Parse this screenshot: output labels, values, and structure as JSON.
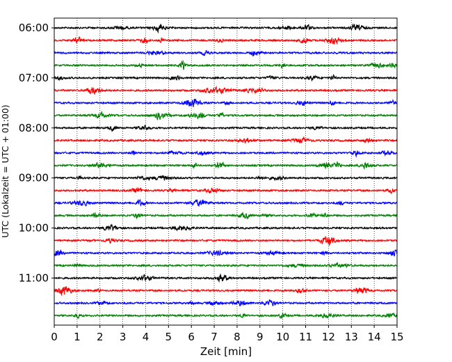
{
  "chart_data": {
    "type": "line",
    "title": "",
    "xlabel": "Zeit  [min]",
    "ylabel": "UTC (Lokalzeit = UTC + 01:00)",
    "xlim": [
      0,
      15
    ],
    "x_ticks": [
      0,
      1,
      2,
      3,
      4,
      5,
      6,
      7,
      8,
      9,
      10,
      11,
      12,
      13,
      14,
      15
    ],
    "x_tick_labels": [
      "0",
      "1",
      "2",
      "3",
      "4",
      "5",
      "6",
      "7",
      "8",
      "9",
      "10",
      "11",
      "12",
      "13",
      "14",
      "15"
    ],
    "y_tick_labels": [
      "06:00",
      "07:00",
      "08:00",
      "09:00",
      "10:00",
      "11:00"
    ],
    "y_tick_trace_index": [
      0,
      4,
      8,
      12,
      16,
      20
    ],
    "grid": "vertical dotted",
    "legend": "none",
    "color_cycle": [
      "#000000",
      "#ff0000",
      "#0000ff",
      "#008000"
    ],
    "traces": [
      {
        "start": "06:00",
        "color": "#000000"
      },
      {
        "start": "06:15",
        "color": "#ff0000"
      },
      {
        "start": "06:30",
        "color": "#0000ff"
      },
      {
        "start": "06:45",
        "color": "#008000"
      },
      {
        "start": "07:00",
        "color": "#000000"
      },
      {
        "start": "07:15",
        "color": "#ff0000"
      },
      {
        "start": "07:30",
        "color": "#0000ff"
      },
      {
        "start": "07:45",
        "color": "#008000"
      },
      {
        "start": "08:00",
        "color": "#000000"
      },
      {
        "start": "08:15",
        "color": "#ff0000"
      },
      {
        "start": "08:30",
        "color": "#0000ff"
      },
      {
        "start": "08:45",
        "color": "#008000"
      },
      {
        "start": "09:00",
        "color": "#000000"
      },
      {
        "start": "09:15",
        "color": "#ff0000"
      },
      {
        "start": "09:30",
        "color": "#0000ff"
      },
      {
        "start": "09:45",
        "color": "#008000"
      },
      {
        "start": "10:00",
        "color": "#000000"
      },
      {
        "start": "10:15",
        "color": "#ff0000"
      },
      {
        "start": "10:30",
        "color": "#0000ff"
      },
      {
        "start": "10:45",
        "color": "#008000"
      },
      {
        "start": "11:00",
        "color": "#000000"
      },
      {
        "start": "11:15",
        "color": "#ff0000"
      },
      {
        "start": "11:30",
        "color": "#0000ff"
      },
      {
        "start": "11:45",
        "color": "#008000"
      }
    ]
  }
}
